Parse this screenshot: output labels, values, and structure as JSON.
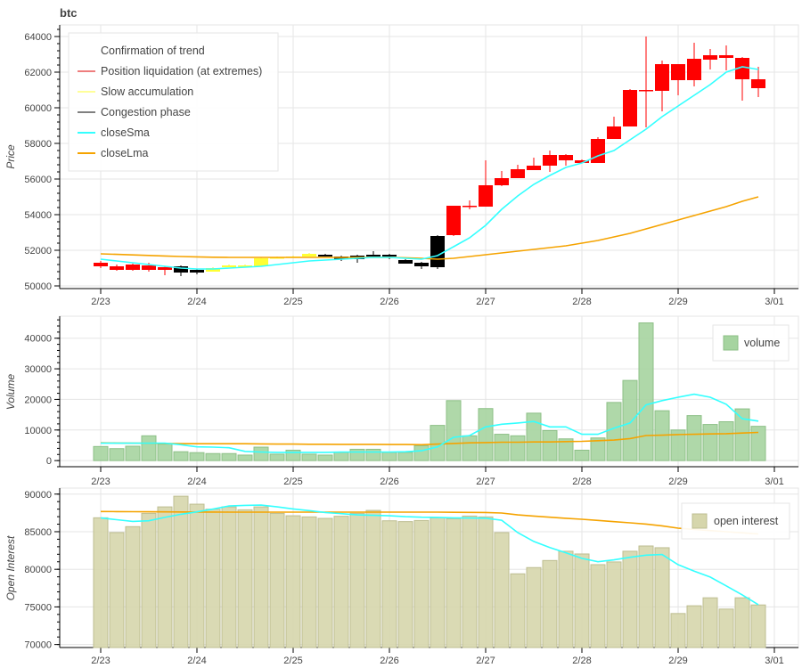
{
  "chart_data": [
    {
      "type": "candlestick",
      "title": "btc",
      "ylabel": "Price",
      "ylim": [
        49850,
        64650
      ],
      "yticks": [
        50000,
        52000,
        54000,
        56000,
        58000,
        60000,
        62000,
        64000
      ],
      "xtick_labels": [
        "2/23",
        "2/24",
        "2/25",
        "2/26",
        "2/27",
        "2/28",
        "2/29",
        "3/01"
      ],
      "interval_hours": 4,
      "legend": {
        "title": "Confirmation of trend",
        "placement": "top-left",
        "items": [
          {
            "label": "Position liquidation (at extremes)",
            "color": "#ff0000"
          },
          {
            "label": "Slow accumulation",
            "color": "#ffff00"
          },
          {
            "label": "Congestion phase",
            "color": "#000000"
          },
          {
            "label": "closeSma",
            "color": "#33ffff"
          },
          {
            "label": "closeLma",
            "color": "#f5a300"
          }
        ]
      },
      "phase_colors": {
        "L": "#ff0000",
        "S": "#ffff33",
        "C": "#000000"
      },
      "candles": [
        [
          51300,
          51400,
          51000,
          51100,
          "L"
        ],
        [
          51100,
          51200,
          50850,
          50900,
          "L"
        ],
        [
          51200,
          51250,
          50850,
          50900,
          "L"
        ],
        [
          51150,
          51300,
          50800,
          50900,
          "L"
        ],
        [
          51050,
          51100,
          50600,
          50900,
          "L"
        ],
        [
          51100,
          51150,
          50550,
          50750,
          "C"
        ],
        [
          50900,
          50950,
          50650,
          50750,
          "C"
        ],
        [
          51000,
          51050,
          50800,
          50800,
          "S"
        ],
        [
          51150,
          51200,
          51050,
          51050,
          "S"
        ],
        [
          51150,
          51200,
          51100,
          51100,
          "S"
        ],
        [
          51550,
          51600,
          51100,
          51100,
          "S"
        ],
        [
          51600,
          51650,
          51550,
          51550,
          "S"
        ],
        [
          51650,
          51700,
          51600,
          51600,
          "S"
        ],
        [
          51800,
          51850,
          51650,
          51650,
          "S"
        ],
        [
          51750,
          51800,
          51650,
          51650,
          "C"
        ],
        [
          51650,
          51700,
          51400,
          51500,
          "C"
        ],
        [
          51700,
          51750,
          51300,
          51500,
          "C"
        ],
        [
          51750,
          51950,
          51650,
          51650,
          "C"
        ],
        [
          51750,
          51800,
          51500,
          51650,
          "C"
        ],
        [
          51450,
          51500,
          51250,
          51250,
          "C"
        ],
        [
          51300,
          51350,
          50950,
          51100,
          "C"
        ],
        [
          52800,
          52850,
          50950,
          51050,
          "C"
        ],
        [
          54500,
          54500,
          52800,
          52850,
          "L"
        ],
        [
          54500,
          54800,
          54300,
          54450,
          "L"
        ],
        [
          55650,
          57050,
          54450,
          54450,
          "L"
        ],
        [
          56050,
          56450,
          55600,
          55650,
          "L"
        ],
        [
          56550,
          56800,
          56050,
          56050,
          "L"
        ],
        [
          56750,
          57200,
          56500,
          56500,
          "L"
        ],
        [
          57350,
          57600,
          56400,
          56750,
          "L"
        ],
        [
          57350,
          57400,
          56750,
          57050,
          "L"
        ],
        [
          57050,
          57100,
          56900,
          56900,
          "L"
        ],
        [
          58250,
          58350,
          56900,
          56900,
          "L"
        ],
        [
          58950,
          59500,
          58250,
          58250,
          "L"
        ],
        [
          61000,
          61050,
          58950,
          58950,
          "L"
        ],
        [
          61000,
          64000,
          58900,
          60950,
          "L"
        ],
        [
          62450,
          62650,
          59800,
          60950,
          "L"
        ],
        [
          62450,
          62450,
          60700,
          61550,
          "L"
        ],
        [
          62750,
          63650,
          61200,
          61550,
          "L"
        ],
        [
          62950,
          63300,
          62150,
          62700,
          "L"
        ],
        [
          62950,
          63500,
          62100,
          62800,
          "L"
        ],
        [
          62800,
          62850,
          60400,
          61600,
          "L"
        ],
        [
          61600,
          62300,
          60600,
          61100,
          "L"
        ]
      ],
      "closeSma": [
        51500,
        51400,
        51300,
        51200,
        51100,
        51000,
        50950,
        50950,
        51000,
        51050,
        51100,
        51200,
        51300,
        51400,
        51450,
        51500,
        51550,
        51600,
        51600,
        51550,
        51500,
        51700,
        52200,
        52700,
        53400,
        54300,
        55050,
        55700,
        56200,
        56650,
        56900,
        57300,
        57600,
        58200,
        58800,
        59500,
        60100,
        60700,
        61300,
        62000,
        62300,
        62150
      ],
      "closeLma": [
        51800,
        51770,
        51740,
        51710,
        51680,
        51650,
        51630,
        51610,
        51600,
        51600,
        51600,
        51600,
        51600,
        51600,
        51600,
        51600,
        51600,
        51600,
        51600,
        51580,
        51550,
        51500,
        51550,
        51650,
        51750,
        51850,
        51950,
        52050,
        52150,
        52250,
        52400,
        52550,
        52750,
        52950,
        53200,
        53450,
        53700,
        53950,
        54200,
        54450,
        54750,
        55000
      ]
    },
    {
      "type": "bar",
      "ylabel": "Volume",
      "ylim": [
        -2000,
        47200
      ],
      "yticks": [
        0,
        10000,
        20000,
        30000,
        40000
      ],
      "xtick_labels": [
        "2/23",
        "2/24",
        "2/25",
        "2/26",
        "2/27",
        "2/28",
        "2/29",
        "3/01"
      ],
      "legend": {
        "label": "volume",
        "placement": "top-right"
      },
      "bar_color": "#a6d4a0",
      "values": [
        4600,
        3900,
        4700,
        8100,
        5400,
        2900,
        2600,
        2300,
        2300,
        1800,
        4400,
        2100,
        3400,
        2100,
        1800,
        2700,
        3700,
        3700,
        2700,
        2700,
        4900,
        11500,
        19600,
        8100,
        17000,
        8600,
        8100,
        15500,
        9800,
        7100,
        3400,
        7400,
        19000,
        26200,
        45000,
        16300,
        10000,
        14700,
        11800,
        12700,
        16900,
        11200
      ],
      "sma": [
        5700,
        5700,
        5700,
        5700,
        5700,
        5200,
        4500,
        4400,
        4200,
        3000,
        2800,
        2700,
        2700,
        2700,
        2700,
        2800,
        2800,
        2800,
        2800,
        2900,
        3200,
        4500,
        7600,
        8200,
        11000,
        11900,
        12300,
        12800,
        11000,
        11000,
        8600,
        8600,
        10600,
        12300,
        18200,
        19600,
        20700,
        21700,
        20700,
        18400,
        13700,
        12900
      ],
      "lma": [
        5800,
        5750,
        5700,
        5650,
        5600,
        5550,
        5500,
        5500,
        5500,
        5500,
        5450,
        5400,
        5400,
        5350,
        5350,
        5300,
        5300,
        5300,
        5250,
        5250,
        5200,
        5400,
        5600,
        5800,
        5900,
        6000,
        6000,
        6100,
        6100,
        6200,
        6300,
        6500,
        6700,
        7200,
        8200,
        8300,
        8500,
        8600,
        8700,
        8800,
        9000,
        9200
      ]
    },
    {
      "type": "bar",
      "ylabel": "Open Interest",
      "ylim": [
        69600,
        90800
      ],
      "yticks": [
        70000,
        75000,
        80000,
        85000,
        90000
      ],
      "xtick_labels": [
        "2/23",
        "2/24",
        "2/25",
        "2/26",
        "2/27",
        "2/28",
        "2/29",
        "3/01"
      ],
      "legend": {
        "label": "open interest",
        "placement": "top-right"
      },
      "bar_color": "#d6d6ac",
      "values": [
        86850,
        84880,
        85670,
        87440,
        88300,
        89720,
        88660,
        87990,
        88300,
        87910,
        88300,
        87440,
        87120,
        86970,
        86770,
        87050,
        87440,
        87830,
        86450,
        86340,
        86490,
        86850,
        86730,
        87080,
        86970,
        84880,
        79400,
        80230,
        81170,
        82400,
        82040,
        80620,
        80980,
        82400,
        83100,
        82870,
        74120,
        75150,
        76210,
        74710,
        76210,
        75260
      ],
      "sma": [
        86850,
        86600,
        86370,
        86450,
        86900,
        87320,
        87640,
        88000,
        88420,
        88500,
        88540,
        88300,
        88030,
        87800,
        87560,
        87400,
        87240,
        87180,
        87120,
        87000,
        86930,
        86900,
        86850,
        86820,
        86800,
        86530,
        84880,
        83700,
        82900,
        82200,
        81450,
        81000,
        81250,
        81600,
        81880,
        81960,
        80620,
        79760,
        78970,
        77790,
        76600,
        75300
      ],
      "lma": [
        87680,
        87670,
        87660,
        87650,
        87640,
        87630,
        87620,
        87610,
        87600,
        87600,
        87600,
        87600,
        87600,
        87600,
        87600,
        87600,
        87600,
        87600,
        87600,
        87600,
        87600,
        87600,
        87580,
        87570,
        87560,
        87480,
        87240,
        87080,
        86930,
        86790,
        86650,
        86500,
        86340,
        86180,
        86020,
        85780,
        85470,
        85300,
        85150,
        85000,
        84850,
        84700
      ]
    }
  ]
}
